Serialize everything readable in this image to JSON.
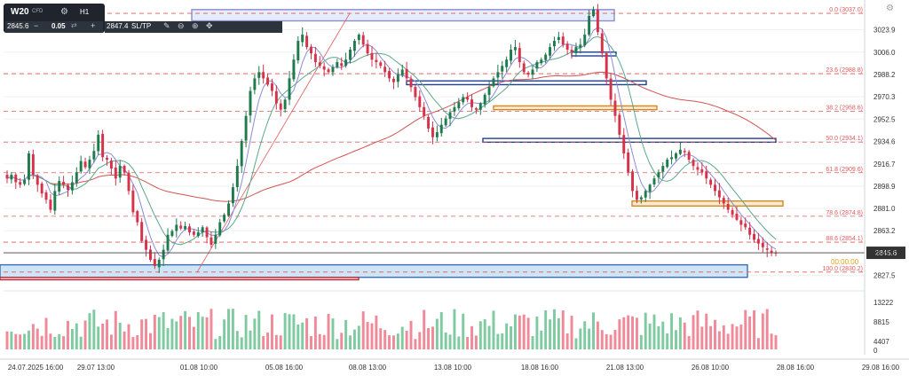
{
  "toolbar": {
    "symbol": "W20",
    "symbol_sub": "CFD",
    "gear_icon": "gear-icon",
    "timeframe": "H1",
    "bid": "2845.6",
    "minus": "−",
    "quantity": "0.05",
    "swap_icon": "swap-icon",
    "plus": "+",
    "ask": "2847.4",
    "sltp": "SL/TP",
    "tools": [
      "pencil-icon",
      "zoom-out-icon",
      "zoom-in-icon",
      "crosshair-icon"
    ]
  },
  "corner_icon": "settings-icon",
  "colors": {
    "bull": "#1f7a4d",
    "bear": "#d6324a",
    "fib": "#e05a5a",
    "ma200": "#d45353",
    "ma_fast": "#8c8cd9",
    "ma_mid": "#5aa88a",
    "blue_zone": "#1f3f8f",
    "orange_zone": "#d08a24",
    "zone_fill": "#cfe4f6"
  },
  "chart_data": {
    "type": "candlestick",
    "symbol": "W20",
    "timeframe": "H1",
    "ylim": [
      2818,
      3042
    ],
    "price_axis_ticks": [
      "3023.9",
      "3006.0",
      "2988.2",
      "2970.3",
      "2952.5",
      "2934.6",
      "2916.7",
      "2898.9",
      "2881.0",
      "2863.2",
      "2845.6",
      "2827.5"
    ],
    "current_price": "2845.6",
    "date_labels": [
      "24.07.2025 16:00",
      "29.07 13:00",
      "01.08 10:00",
      "05.08 16:00",
      "08.08 13:00",
      "13.08 10:00",
      "18.08 16:00",
      "21.08 13:00",
      "26.08 10:00",
      "28.08 16:00",
      "29.08 16:00"
    ],
    "fib_levels": [
      {
        "label": "0.0 (3037.0)",
        "price": 3037.0
      },
      {
        "label": "23.6 (2988.8)",
        "price": 2988.8
      },
      {
        "label": "38.2 (2958.6)",
        "price": 2958.6
      },
      {
        "label": "50.0 (2934.1)",
        "price": 2934.1
      },
      {
        "label": "61.8 (2909.6)",
        "price": 2909.6
      },
      {
        "label": "78.6 (2874.8)",
        "price": 2874.8
      },
      {
        "label": "88.6 (2854.1)",
        "price": 2854.1
      },
      {
        "label": "100.0 (2830.2)",
        "price": 2830.2
      }
    ],
    "sell_order_label": "00:00:00",
    "volume_ticks": [
      "13222",
      "8815",
      "4407",
      "0"
    ],
    "close_path": [
      2905,
      2908,
      2902,
      2900,
      2904,
      2925,
      2908,
      2900,
      2893,
      2888,
      2880,
      2895,
      2903,
      2900,
      2896,
      2902,
      2910,
      2919,
      2914,
      2920,
      2927,
      2940,
      2922,
      2920,
      2913,
      2905,
      2915,
      2910,
      2895,
      2878,
      2870,
      2855,
      2848,
      2840,
      2835,
      2840,
      2848,
      2860,
      2863,
      2868,
      2865,
      2867,
      2862,
      2860,
      2862,
      2866,
      2858,
      2852,
      2860,
      2870,
      2876,
      2885,
      2898,
      2915,
      2935,
      2955,
      2975,
      2985,
      2990,
      2985,
      2980,
      2975,
      2965,
      2960,
      2968,
      2985,
      3000,
      3015,
      3020,
      3010,
      3005,
      2998,
      2995,
      2992,
      2990,
      2994,
      2998,
      2995,
      3000,
      3008,
      3015,
      3020,
      3012,
      3005,
      3000,
      2998,
      2995,
      2990,
      2985,
      2982,
      2988,
      2992,
      2985,
      2978,
      2970,
      2962,
      2955,
      2945,
      2938,
      2942,
      2948,
      2953,
      2958,
      2962,
      2966,
      2970,
      2968,
      2962,
      2960,
      2965,
      2972,
      2978,
      2985,
      2990,
      2995,
      3000,
      3008,
      3010,
      2998,
      2990,
      2988,
      2992,
      2998,
      3000,
      3004,
      3010,
      3015,
      3018,
      3012,
      3008,
      3006,
      3010,
      3012,
      3020,
      3035,
      3040,
      3022,
      3005,
      2985,
      2968,
      2955,
      2940,
      2925,
      2910,
      2895,
      2888,
      2890,
      2895,
      2900,
      2905,
      2910,
      2915,
      2920,
      2922,
      2925,
      2928,
      2926,
      2920,
      2915,
      2912,
      2910,
      2905,
      2900,
      2895,
      2890,
      2885,
      2880,
      2876,
      2872,
      2868,
      2866,
      2860,
      2856,
      2853,
      2850,
      2848,
      2846,
      2845.6
    ]
  }
}
